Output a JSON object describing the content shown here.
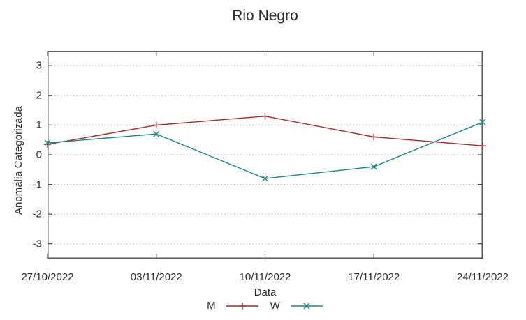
{
  "chart_data": {
    "type": "line",
    "title": "Rio Negro",
    "xlabel": "Data",
    "ylabel": "Anomalia Categorizada",
    "x": [
      "27/10/2022",
      "03/11/2022",
      "10/11/2022",
      "17/11/2022",
      "24/11/2022"
    ],
    "yticks": [
      3,
      2,
      1,
      0,
      -1,
      -2,
      -3
    ],
    "ylim": [
      -3.5,
      3.5
    ],
    "grid": "horizontal-dotted",
    "legend_position": "bottom-center",
    "series": [
      {
        "name": "M",
        "color": "#a62a2a",
        "marker": "plus",
        "values": [
          0.35,
          1.0,
          1.3,
          0.6,
          0.3
        ]
      },
      {
        "name": "W",
        "color": "#1e8686",
        "marker": "cross",
        "values": [
          0.4,
          0.7,
          -0.8,
          -0.4,
          1.1
        ]
      }
    ],
    "colors": {
      "border": "#595959",
      "grid": "#b5b5b5",
      "tick": "#444444"
    }
  }
}
